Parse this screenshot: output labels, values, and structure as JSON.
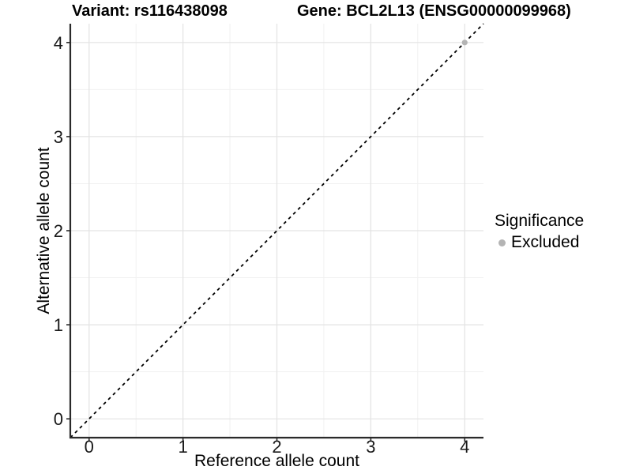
{
  "titles": {
    "variant": "Variant: rs116438098",
    "gene": "Gene: BCL2L13 (ENSG00000099968)"
  },
  "axes": {
    "x": {
      "label": "Reference allele count",
      "ticks": [
        0,
        1,
        2,
        3,
        4
      ],
      "minor_ticks": [
        0.5,
        1.5,
        2.5,
        3.5
      ],
      "range": [
        -0.2,
        4.2
      ]
    },
    "y": {
      "label": "Alternative allele count",
      "ticks": [
        0,
        1,
        2,
        3,
        4
      ],
      "minor_ticks": [
        0.5,
        1.5,
        2.5,
        3.5
      ],
      "range": [
        -0.2,
        4.2
      ]
    }
  },
  "legend": {
    "title": "Significance",
    "items": [
      {
        "label": "Excluded",
        "color": "#b4b4b4"
      }
    ]
  },
  "chart_data": {
    "type": "scatter",
    "title": "Variant: rs116438098   Gene: BCL2L13 (ENSG00000099968)",
    "xlabel": "Reference allele count",
    "ylabel": "Alternative allele count",
    "xlim": [
      -0.2,
      4.2
    ],
    "ylim": [
      -0.2,
      4.2
    ],
    "x_ticks": [
      0,
      1,
      2,
      3,
      4
    ],
    "y_ticks": [
      0,
      1,
      2,
      3,
      4
    ],
    "minor_ticks": [
      0.5,
      1.5,
      2.5,
      3.5
    ],
    "grid": true,
    "legend_position": "right",
    "series": [
      {
        "name": "Excluded",
        "color": "#b4b4b4",
        "points": [
          {
            "x": 4,
            "y": 4
          }
        ]
      }
    ],
    "reference_line": {
      "style": "dashed",
      "from": [
        -0.2,
        -0.2
      ],
      "to": [
        4.2,
        4.2
      ],
      "color": "#000000",
      "note": "identity line y = x"
    }
  },
  "colors": {
    "background": "#ffffff",
    "major_grid": "#e3e3e3",
    "minor_grid": "#f1f1f1",
    "axis_line": "#2a2a2a",
    "tick_text": "#1a1a1a",
    "point": "#b4b4b4"
  }
}
